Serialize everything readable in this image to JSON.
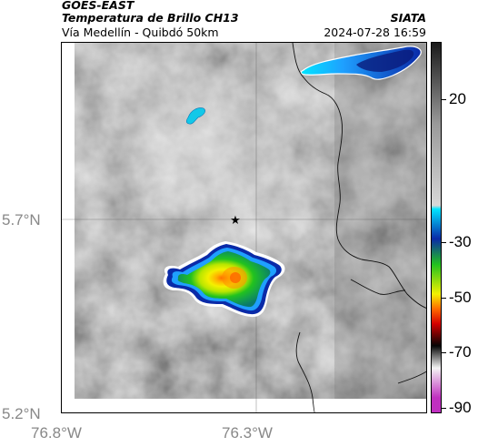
{
  "header": {
    "satellite": "GOES-EAST",
    "product": "Temperatura de Brillo CH13",
    "subtitle": "Vía Medellín - Quibdó 50km",
    "organization": "SIATA",
    "datetime": "2024-07-28 16:59"
  },
  "map": {
    "lat_labels": [
      "5.7°N",
      "5.2°N"
    ],
    "lon_labels": [
      "76.8°W",
      "76.3°W"
    ],
    "marker": {
      "symbol": "star",
      "description": "location-marker"
    }
  },
  "colorbar": {
    "tick_labels": [
      "20",
      "-30",
      "-50",
      "-70",
      "-90"
    ],
    "colors": {
      "warm_gray_top": "#1a1a1a",
      "gray_mid": "#d8d8d8",
      "cyan": "#00e5ff",
      "blue": "#0a2aa8",
      "green": "#22c21e",
      "yellow": "#f4f000",
      "orange": "#ff6a00",
      "red": "#d40000",
      "black": "#050505",
      "white": "#f4f4f4",
      "magenta": "#c030c0"
    }
  }
}
